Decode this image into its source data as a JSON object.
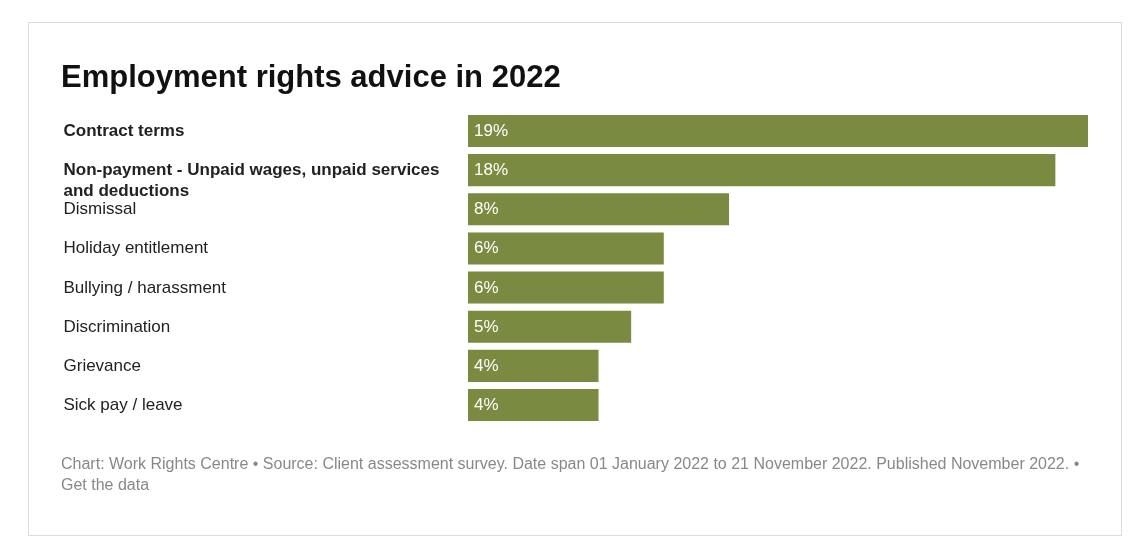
{
  "chart_data": {
    "type": "bar",
    "orientation": "horizontal",
    "title": "Employment rights advice in 2022",
    "categories": [
      "Contract terms",
      "Non-payment - Unpaid wages, unpaid services and deductions",
      "Dismissal",
      "Holiday entitlement",
      "Bullying / harassment",
      "Discrimination",
      "Grievance",
      "Sick pay / leave"
    ],
    "values": [
      19,
      18,
      8,
      6,
      6,
      5,
      4,
      4
    ],
    "value_labels": [
      "19%",
      "18%",
      "8%",
      "6%",
      "6%",
      "5%",
      "4%",
      "4%"
    ],
    "color": "#7a8a40",
    "annotations": [
      "Chart: Work Rights Centre • Source: Client assessment survey. Date span 01 January 2022 to 21 November 2022. Published November 2022. • Get the data"
    ]
  }
}
